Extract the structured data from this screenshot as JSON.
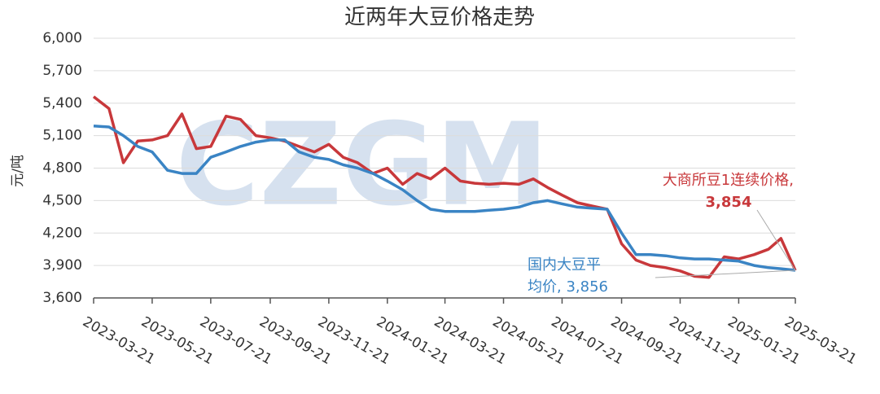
{
  "chart_data": {
    "type": "line",
    "title": "近两年大豆价格走势",
    "y_label": "元/吨",
    "watermark": "CZGM",
    "x": [
      "2023-03-21",
      "2023-04-06",
      "2023-04-21",
      "2023-05-06",
      "2023-05-21",
      "2023-06-06",
      "2023-06-21",
      "2023-07-06",
      "2023-07-21",
      "2023-08-06",
      "2023-08-21",
      "2023-09-06",
      "2023-09-21",
      "2023-10-06",
      "2023-10-21",
      "2023-11-06",
      "2023-11-21",
      "2023-12-06",
      "2023-12-21",
      "2024-01-06",
      "2024-01-21",
      "2024-02-06",
      "2024-02-21",
      "2024-03-06",
      "2024-03-21",
      "2024-04-06",
      "2024-04-21",
      "2024-05-06",
      "2024-05-21",
      "2024-06-06",
      "2024-06-21",
      "2024-07-06",
      "2024-07-21",
      "2024-08-06",
      "2024-08-21",
      "2024-09-06",
      "2024-09-21",
      "2024-10-06",
      "2024-10-21",
      "2024-11-06",
      "2024-11-21",
      "2024-12-06",
      "2024-12-21",
      "2025-01-06",
      "2025-01-21",
      "2025-02-06",
      "2025-02-21",
      "2025-03-06",
      "2025-03-21"
    ],
    "series": [
      {
        "name": "大商所豆1连续价格",
        "color": "#c8383b",
        "values": [
          5460,
          5350,
          4850,
          5050,
          5060,
          5100,
          5300,
          4980,
          5000,
          5280,
          5250,
          5100,
          5080,
          5050,
          5000,
          4950,
          5020,
          4900,
          4850,
          4750,
          4800,
          4650,
          4750,
          4700,
          4800,
          4680,
          4660,
          4650,
          4660,
          4650,
          4700,
          4620,
          4550,
          4480,
          4450,
          4420,
          4100,
          3950,
          3900,
          3880,
          3850,
          3800,
          3790,
          3980,
          3960,
          4000,
          4050,
          4150,
          3854
        ]
      },
      {
        "name": "国内大豆平均价",
        "color": "#3a84c4",
        "values": [
          5190,
          5180,
          5100,
          5000,
          4950,
          4780,
          4750,
          4750,
          4900,
          4950,
          5000,
          5040,
          5060,
          5060,
          4950,
          4900,
          4880,
          4830,
          4800,
          4750,
          4680,
          4600,
          4500,
          4420,
          4400,
          4400,
          4400,
          4410,
          4420,
          4440,
          4480,
          4500,
          4470,
          4440,
          4430,
          4420,
          4200,
          4000,
          4000,
          3990,
          3970,
          3960,
          3960,
          3950,
          3940,
          3900,
          3880,
          3870,
          3856
        ]
      }
    ],
    "annotations": [
      {
        "lines": [
          "大商所豆1连续价格,",
          "3,854"
        ],
        "color": "#c8383b"
      },
      {
        "lines": [
          "国内大豆平",
          "均价, 3,856"
        ],
        "color": "#3a84c4"
      }
    ],
    "xlim": [
      "2023-03-21",
      "2025-03-21"
    ],
    "xticks": [
      "2023-03-21",
      "2023-05-21",
      "2023-07-21",
      "2023-09-21",
      "2023-11-21",
      "2024-01-21",
      "2024-03-21",
      "2024-05-21",
      "2024-07-21",
      "2024-09-21",
      "2024-11-21",
      "2025-01-21",
      "2025-03-21"
    ],
    "ylim": [
      3600,
      6000
    ],
    "yticks": [
      {
        "value": 3600,
        "label": "3,600"
      },
      {
        "value": 3900,
        "label": "3,900"
      },
      {
        "value": 4200,
        "label": "4,200"
      },
      {
        "value": 4500,
        "label": "4,500"
      },
      {
        "value": 4800,
        "label": "4,800"
      },
      {
        "value": 5100,
        "label": "5,100"
      },
      {
        "value": 5400,
        "label": "5,400"
      },
      {
        "value": 5700,
        "label": "5,700"
      },
      {
        "value": 6000,
        "label": "6,000"
      }
    ],
    "grid": true
  }
}
